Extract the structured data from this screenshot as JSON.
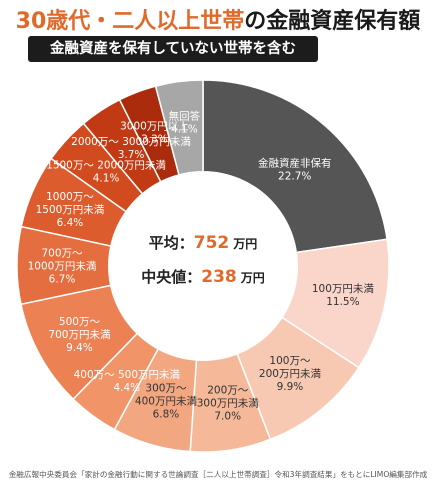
{
  "title": {
    "accent": "30歳代・二人以上世帯",
    "rest": "の金融資産保有額"
  },
  "subtitle": "金融資産を保有していない世帯を含む",
  "center": {
    "avg_label": "平均：",
    "avg_value": "752",
    "avg_unit": "万円",
    "median_label": "中央値：",
    "median_value": "238",
    "median_unit": "万円"
  },
  "footnote": "金融広報中央委員会「家計の金融行動に関する世論調査［二人以上世帯調査］令和3年調査結果」をもとにLIMO編集部作成",
  "colors": {
    "accent": "#e06a2a",
    "center_value": "#e06a2a"
  },
  "chart_data": {
    "type": "pie",
    "variant": "donut",
    "title": "30歳代・二人以上世帯の金融資産保有額",
    "unit": "%",
    "slices": [
      {
        "label": [
          "金融資産非保有"
        ],
        "value": 22.7,
        "value_text": "22.7%",
        "color": "#555555",
        "text_color": "#ffffff"
      },
      {
        "label": [
          "100万円未満"
        ],
        "value": 11.5,
        "value_text": "11.5%",
        "color": "#f9d6c9",
        "text_color": "#333333"
      },
      {
        "label": [
          "100万〜",
          "200万円未満"
        ],
        "value": 9.9,
        "value_text": "9.9%",
        "color": "#f7c9b2",
        "text_color": "#333333"
      },
      {
        "label": [
          "200万〜",
          "300万円未満"
        ],
        "value": 7.0,
        "value_text": "7.0%",
        "color": "#f5b99a",
        "text_color": "#333333"
      },
      {
        "label": [
          "300万〜",
          "400万円未満"
        ],
        "value": 6.8,
        "value_text": "6.8%",
        "color": "#f3a780",
        "text_color": "#333333"
      },
      {
        "label": [
          "400万〜 500万円未満"
        ],
        "value": 4.4,
        "value_text": "4.4%",
        "color": "#f19468",
        "text_color": "#ffffff"
      },
      {
        "label": [
          "500万〜",
          "700万円未満"
        ],
        "value": 9.4,
        "value_text": "9.4%",
        "color": "#ec8154",
        "text_color": "#ffffff"
      },
      {
        "label": [
          "700万〜",
          "1000万円未満"
        ],
        "value": 6.7,
        "value_text": "6.7%",
        "color": "#e56e40",
        "text_color": "#ffffff"
      },
      {
        "label": [
          "1000万〜",
          "1500万円未満"
        ],
        "value": 6.4,
        "value_text": "6.4%",
        "color": "#dc5c2e",
        "text_color": "#ffffff"
      },
      {
        "label": [
          "1500万〜 2000万円未満"
        ],
        "value": 4.1,
        "value_text": "4.1%",
        "color": "#d24b1f",
        "text_color": "#ffffff"
      },
      {
        "label": [
          "2000万〜 3000万円未満"
        ],
        "value": 3.7,
        "value_text": "3.7%",
        "color": "#c23a14",
        "text_color": "#ffffff"
      },
      {
        "label": [
          "3000万円以上"
        ],
        "value": 3.3,
        "value_text": "3.3%",
        "color": "#ab2c0d",
        "text_color": "#ffffff"
      },
      {
        "label": [
          "無回答"
        ],
        "value": 4.1,
        "value_text": "4.1%",
        "color": "#a7a7a7",
        "text_color": "#ffffff"
      }
    ]
  }
}
